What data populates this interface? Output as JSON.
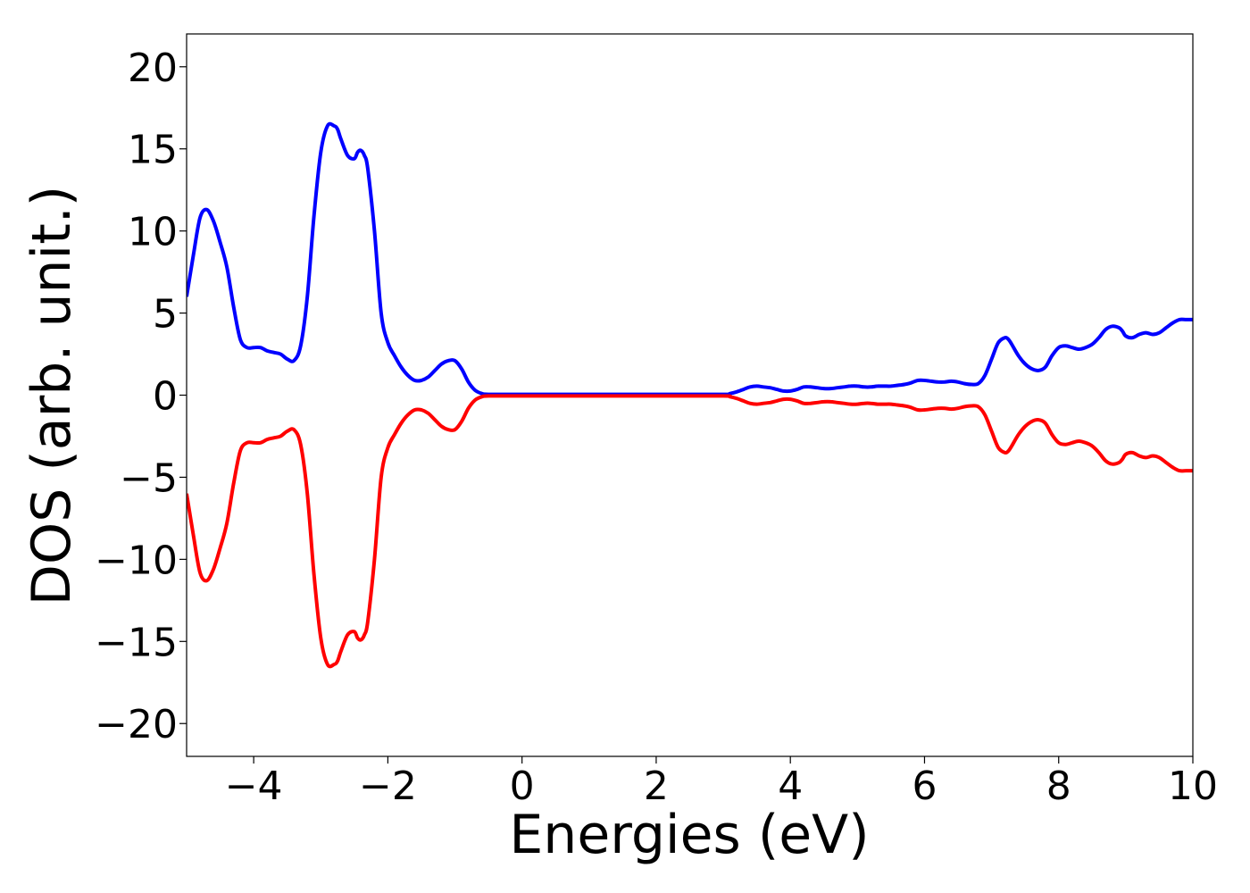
{
  "chart_data": {
    "type": "line",
    "title": "",
    "xlabel": "Energies (eV)",
    "ylabel": "DOS (arb. unit.)",
    "xlim": [
      -5,
      10
    ],
    "ylim": [
      -22,
      22
    ],
    "x_ticks": [
      -4,
      -2,
      0,
      2,
      4,
      6,
      8,
      10
    ],
    "x_tick_labels": [
      "−4",
      "−2",
      "0",
      "2",
      "4",
      "6",
      "8",
      "10"
    ],
    "y_ticks": [
      20,
      15,
      10,
      5,
      0,
      -5,
      -10,
      -15,
      -20
    ],
    "y_tick_labels": [
      "20",
      "15",
      "10",
      "5",
      "0",
      "−5",
      "−10",
      "−15",
      "−20"
    ],
    "grid": false,
    "legend": "none",
    "series": [
      {
        "color": "#0000ff",
        "x": [
          -5.0,
          -4.9,
          -4.8,
          -4.7,
          -4.6,
          -4.5,
          -4.4,
          -4.3,
          -4.2,
          -4.1,
          -4.0,
          -3.9,
          -3.8,
          -3.7,
          -3.6,
          -3.5,
          -3.4,
          -3.3,
          -3.2,
          -3.1,
          -3.0,
          -2.9,
          -2.8,
          -2.75,
          -2.7,
          -2.6,
          -2.5,
          -2.45,
          -2.4,
          -2.35,
          -2.3,
          -2.2,
          -2.1,
          -2.0,
          -1.9,
          -1.8,
          -1.7,
          -1.6,
          -1.5,
          -1.4,
          -1.3,
          -1.2,
          -1.1,
          -1.0,
          -0.9,
          -0.8,
          -0.7,
          -0.6,
          -0.5,
          0.0,
          1.0,
          2.0,
          3.0,
          3.1,
          3.2,
          3.3,
          3.4,
          3.5,
          3.6,
          3.7,
          3.8,
          3.9,
          4.0,
          4.1,
          4.2,
          4.3,
          4.4,
          4.5,
          4.6,
          4.7,
          4.8,
          4.9,
          5.0,
          5.1,
          5.2,
          5.3,
          5.4,
          5.5,
          5.6,
          5.7,
          5.8,
          5.9,
          6.0,
          6.1,
          6.2,
          6.3,
          6.4,
          6.5,
          6.6,
          6.7,
          6.8,
          6.9,
          7.0,
          7.1,
          7.2,
          7.25,
          7.3,
          7.4,
          7.5,
          7.6,
          7.7,
          7.8,
          7.9,
          8.0,
          8.1,
          8.2,
          8.3,
          8.4,
          8.5,
          8.6,
          8.7,
          8.8,
          8.9,
          8.95,
          9.0,
          9.1,
          9.2,
          9.3,
          9.4,
          9.5,
          9.6,
          9.7,
          9.8,
          9.9,
          10.0
        ],
        "y": [
          6.0,
          8.5,
          10.8,
          11.3,
          10.6,
          9.3,
          7.8,
          5.4,
          3.4,
          2.9,
          2.9,
          2.9,
          2.7,
          2.6,
          2.5,
          2.2,
          2.1,
          3.0,
          6.0,
          11.0,
          14.8,
          16.4,
          16.4,
          16.2,
          15.6,
          14.6,
          14.4,
          14.8,
          14.9,
          14.6,
          13.8,
          10.0,
          5.0,
          3.2,
          2.4,
          1.7,
          1.2,
          0.9,
          0.9,
          1.1,
          1.5,
          1.9,
          2.1,
          2.1,
          1.6,
          0.8,
          0.3,
          0.1,
          0.05,
          0.05,
          0.05,
          0.05,
          0.05,
          0.1,
          0.2,
          0.35,
          0.5,
          0.55,
          0.5,
          0.45,
          0.35,
          0.25,
          0.25,
          0.35,
          0.5,
          0.5,
          0.45,
          0.4,
          0.4,
          0.45,
          0.5,
          0.55,
          0.55,
          0.5,
          0.5,
          0.55,
          0.55,
          0.55,
          0.6,
          0.65,
          0.75,
          0.9,
          0.9,
          0.85,
          0.8,
          0.8,
          0.85,
          0.8,
          0.7,
          0.65,
          0.7,
          1.2,
          2.2,
          3.2,
          3.5,
          3.4,
          3.1,
          2.4,
          1.9,
          1.6,
          1.5,
          1.7,
          2.4,
          2.9,
          3.0,
          2.9,
          2.8,
          2.9,
          3.1,
          3.5,
          4.0,
          4.2,
          4.1,
          3.9,
          3.6,
          3.5,
          3.7,
          3.8,
          3.7,
          3.8,
          4.1,
          4.4,
          4.6,
          4.6,
          4.6
        ]
      },
      {
        "color": "#ff0000",
        "x": [
          -5.0,
          -4.9,
          -4.8,
          -4.7,
          -4.6,
          -4.5,
          -4.4,
          -4.3,
          -4.2,
          -4.1,
          -4.0,
          -3.9,
          -3.8,
          -3.7,
          -3.6,
          -3.5,
          -3.4,
          -3.3,
          -3.2,
          -3.1,
          -3.0,
          -2.9,
          -2.8,
          -2.75,
          -2.7,
          -2.6,
          -2.5,
          -2.45,
          -2.4,
          -2.35,
          -2.3,
          -2.2,
          -2.1,
          -2.0,
          -1.9,
          -1.8,
          -1.7,
          -1.6,
          -1.5,
          -1.4,
          -1.3,
          -1.2,
          -1.1,
          -1.0,
          -0.9,
          -0.8,
          -0.7,
          -0.6,
          -0.5,
          0.0,
          1.0,
          2.0,
          3.0,
          3.1,
          3.2,
          3.3,
          3.4,
          3.5,
          3.6,
          3.7,
          3.8,
          3.9,
          4.0,
          4.1,
          4.2,
          4.3,
          4.4,
          4.5,
          4.6,
          4.7,
          4.8,
          4.9,
          5.0,
          5.1,
          5.2,
          5.3,
          5.4,
          5.5,
          5.6,
          5.7,
          5.8,
          5.9,
          6.0,
          6.1,
          6.2,
          6.3,
          6.4,
          6.5,
          6.6,
          6.7,
          6.8,
          6.9,
          7.0,
          7.1,
          7.2,
          7.25,
          7.3,
          7.4,
          7.5,
          7.6,
          7.7,
          7.8,
          7.9,
          8.0,
          8.1,
          8.2,
          8.3,
          8.4,
          8.5,
          8.6,
          8.7,
          8.8,
          8.9,
          8.95,
          9.0,
          9.1,
          9.2,
          9.3,
          9.4,
          9.5,
          9.6,
          9.7,
          9.8,
          9.9,
          10.0
        ],
        "y": [
          -6.0,
          -8.5,
          -10.8,
          -11.3,
          -10.6,
          -9.3,
          -7.8,
          -5.4,
          -3.4,
          -2.9,
          -2.9,
          -2.9,
          -2.7,
          -2.6,
          -2.5,
          -2.2,
          -2.1,
          -3.0,
          -6.0,
          -11.0,
          -14.8,
          -16.4,
          -16.4,
          -16.2,
          -15.6,
          -14.6,
          -14.4,
          -14.8,
          -14.9,
          -14.6,
          -13.8,
          -10.0,
          -5.0,
          -3.2,
          -2.4,
          -1.7,
          -1.2,
          -0.9,
          -0.9,
          -1.1,
          -1.5,
          -1.9,
          -2.1,
          -2.1,
          -1.6,
          -0.8,
          -0.3,
          -0.1,
          -0.05,
          -0.05,
          -0.05,
          -0.05,
          -0.05,
          -0.1,
          -0.2,
          -0.35,
          -0.5,
          -0.55,
          -0.5,
          -0.45,
          -0.35,
          -0.25,
          -0.25,
          -0.35,
          -0.5,
          -0.5,
          -0.45,
          -0.4,
          -0.4,
          -0.45,
          -0.5,
          -0.55,
          -0.55,
          -0.5,
          -0.5,
          -0.55,
          -0.55,
          -0.55,
          -0.6,
          -0.65,
          -0.75,
          -0.9,
          -0.9,
          -0.85,
          -0.8,
          -0.8,
          -0.85,
          -0.8,
          -0.7,
          -0.65,
          -0.7,
          -1.2,
          -2.2,
          -3.2,
          -3.5,
          -3.4,
          -3.1,
          -2.4,
          -1.9,
          -1.6,
          -1.5,
          -1.7,
          -2.4,
          -2.9,
          -3.0,
          -2.9,
          -2.8,
          -2.9,
          -3.1,
          -3.5,
          -4.0,
          -4.2,
          -4.1,
          -3.9,
          -3.6,
          -3.5,
          -3.7,
          -3.8,
          -3.7,
          -3.8,
          -4.1,
          -4.4,
          -4.6,
          -4.6,
          -4.6
        ]
      }
    ]
  }
}
